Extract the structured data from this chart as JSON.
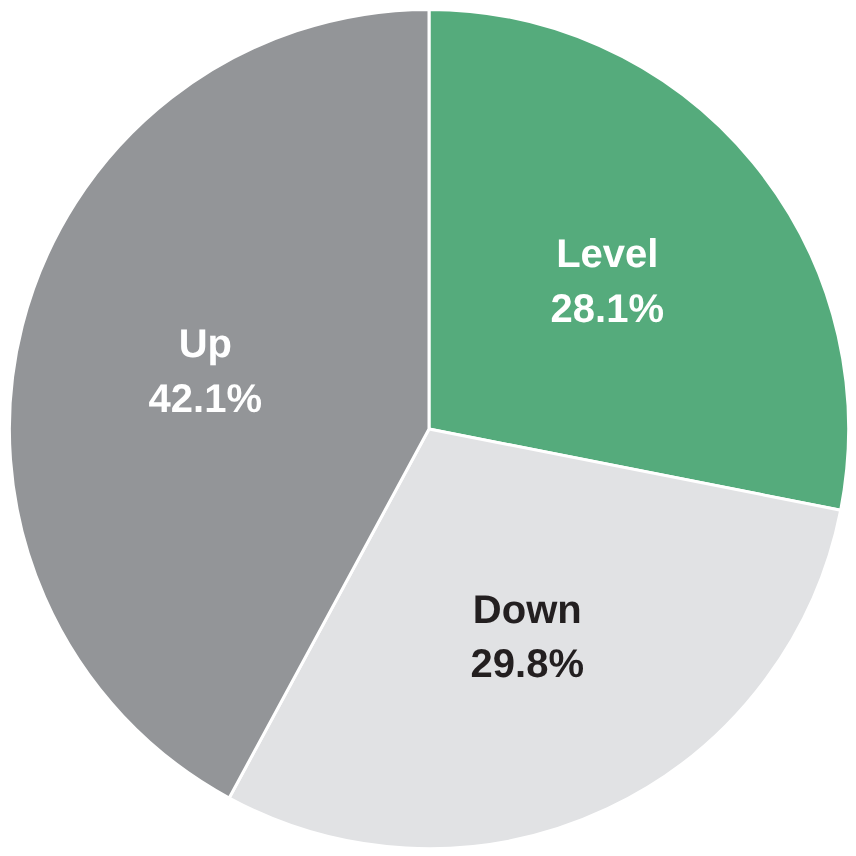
{
  "chart_data": {
    "type": "pie",
    "categories": [
      "Level",
      "Down",
      "Up"
    ],
    "values": [
      28.1,
      29.8,
      42.1
    ],
    "colors": [
      "#55ab7c",
      "#e1e2e4",
      "#939598"
    ],
    "value_labels": [
      "28.1%",
      "29.8%",
      "42.1%"
    ]
  }
}
